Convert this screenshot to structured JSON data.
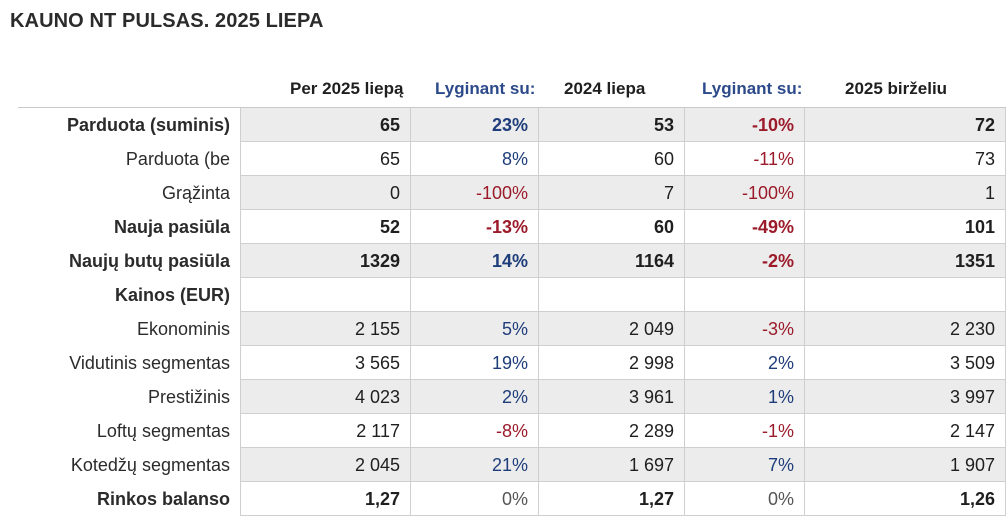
{
  "title": "KAUNO NT PULSAS. 2025 LIEPA",
  "headers": {
    "col1": "Per 2025 liepą",
    "cmp1": "Lyginant su:",
    "col2": "2024 liepa",
    "cmp2": "Lyginant su:",
    "col3": "2025 birželiu"
  },
  "rows": [
    {
      "label": "Parduota (suminis)",
      "v1": "65",
      "d1": "23%",
      "v2": "53",
      "d2": "-10%",
      "v3": "72"
    },
    {
      "label": "Parduota (be",
      "v1": "65",
      "d1": "8%",
      "v2": "60",
      "d2": "-11%",
      "v3": "73"
    },
    {
      "label": "Grąžinta",
      "v1": "0",
      "d1": "-100%",
      "v2": "7",
      "d2": "-100%",
      "v3": "1"
    },
    {
      "label": "Nauja pasiūla",
      "v1": "52",
      "d1": "-13%",
      "v2": "60",
      "d2": "-49%",
      "v3": "101"
    },
    {
      "label": "Naujų butų pasiūla",
      "v1": "1329",
      "d1": "14%",
      "v2": "1164",
      "d2": "-2%",
      "v3": "1351"
    },
    {
      "label": "Kainos (EUR)",
      "v1": "",
      "d1": "",
      "v2": "",
      "d2": "",
      "v3": ""
    },
    {
      "label": "Ekonominis",
      "v1": "2 155",
      "d1": "5%",
      "v2": "2 049",
      "d2": "-3%",
      "v3": "2 230"
    },
    {
      "label": "Vidutinis segmentas",
      "v1": "3 565",
      "d1": "19%",
      "v2": "2 998",
      "d2": "2%",
      "v3": "3 509"
    },
    {
      "label": "Prestižinis",
      "v1": "4 023",
      "d1": "2%",
      "v2": "3 961",
      "d2": "1%",
      "v3": "3 997"
    },
    {
      "label": "Loftų segmentas",
      "v1": "2 117",
      "d1": "-8%",
      "v2": "2 289",
      "d2": "-1%",
      "v3": "2 147"
    },
    {
      "label": "Kotedžų segmentas",
      "v1": "2 045",
      "d1": "21%",
      "v2": "1 697",
      "d2": "7%",
      "v3": "1 907"
    },
    {
      "label": "Rinkos balanso",
      "v1": "1,27",
      "d1": "0%",
      "v2": "1,27",
      "d2": "0%",
      "v3": "1,26"
    }
  ],
  "colors": {
    "positive": "#1e3d7a",
    "negative": "#9b1b2a",
    "neutral": "#555555",
    "row_shade": "#ececec"
  }
}
